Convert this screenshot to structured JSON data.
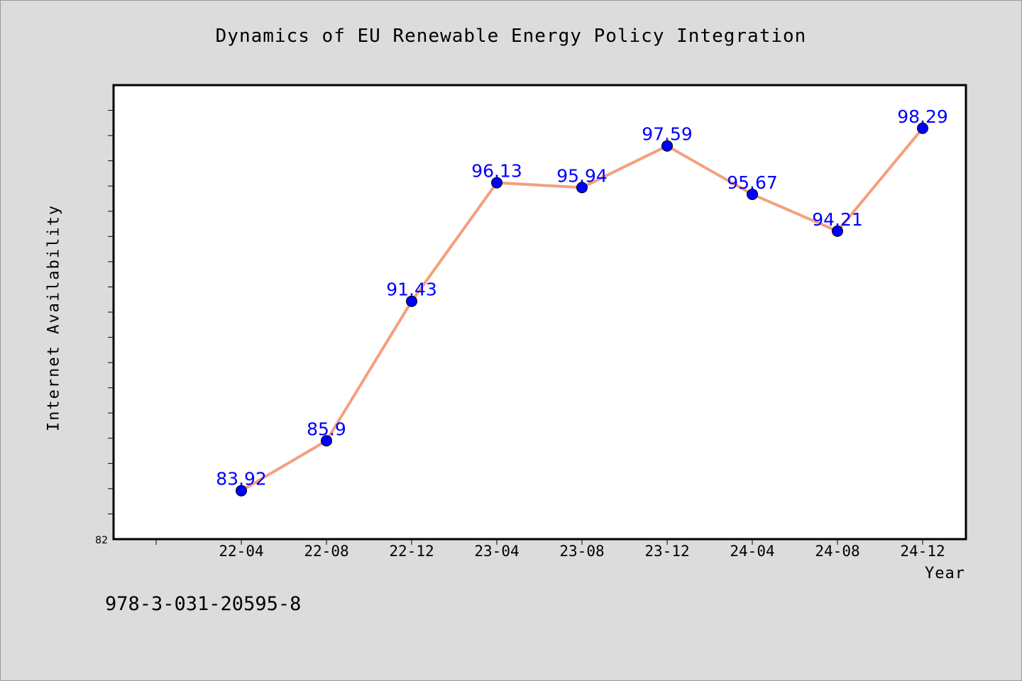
{
  "chart_data": {
    "type": "line",
    "title": "Dynamics of EU Renewable Energy Policy Integration",
    "xlabel": "Year",
    "ylabel": "Internet Availability",
    "categories": [
      "22-04",
      "22-08",
      "22-12",
      "23-04",
      "23-08",
      "23-12",
      "24-04",
      "24-08",
      "24-12"
    ],
    "series": [
      {
        "values": [
          83.92,
          85.9,
          91.43,
          96.13,
          95.94,
          97.59,
          95.67,
          94.21,
          98.29
        ],
        "labels": [
          "83.92",
          "85.9",
          "91.43",
          "96.13",
          "95.94",
          "97.59",
          "95.67",
          "94.21",
          "98.29"
        ]
      }
    ],
    "ylim": [
      82,
      100
    ],
    "y_tick_labels": [
      "82"
    ],
    "grid": false,
    "line_color": "#f4a07c",
    "marker_color": "#0000ff",
    "label_color": "#0000ff",
    "plot_background": "#ffffff",
    "page_background": "#dcdcdc"
  },
  "footer": {
    "isbn": "978-3-031-20595-8"
  }
}
